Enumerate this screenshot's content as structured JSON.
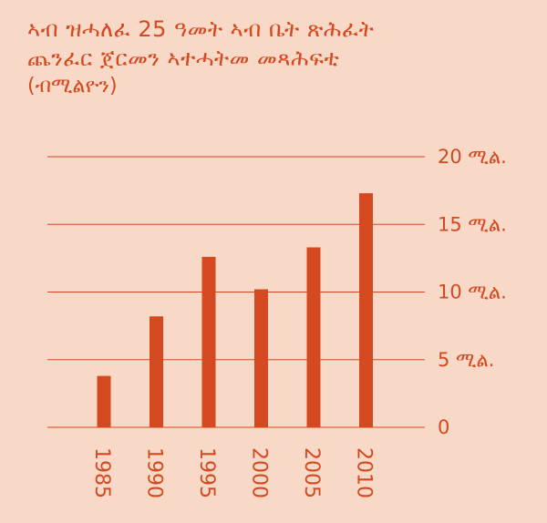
{
  "title_lines": [
    "ኣብ ዝሓለፈ 25 ዓመት ኣብ ቤት ጽሕፈት",
    "ጨንፈር ጀርመን ኣተሓትመ መጻሕፍቲ"
  ],
  "subtitle": "(ብሚልዮን)",
  "colors": {
    "background": "#f8d9c8",
    "accent": "#d4491f"
  },
  "chart_data": {
    "type": "bar",
    "title": "ኣብ ዝሓለፈ 25 ዓመት ኣብ ቤት ጽሕፈት ጨንፈር ጀርመን ኣተሓትመ መጻሕፍቲ",
    "subtitle": "(ብሚልዮን)",
    "categories": [
      "1985",
      "1990",
      "1995",
      "2000",
      "2005",
      "2010"
    ],
    "values": [
      3.8,
      8.2,
      12.6,
      10.2,
      13.3,
      17.3
    ],
    "ylim": [
      0,
      20
    ],
    "yticks": [
      0,
      5,
      10,
      15,
      20
    ],
    "ytick_labels": [
      "0",
      "5 ሚል.",
      "10 ሚል.",
      "15 ሚል.",
      "20 ሚል."
    ],
    "grid": true,
    "xlabel": "",
    "ylabel": ""
  }
}
